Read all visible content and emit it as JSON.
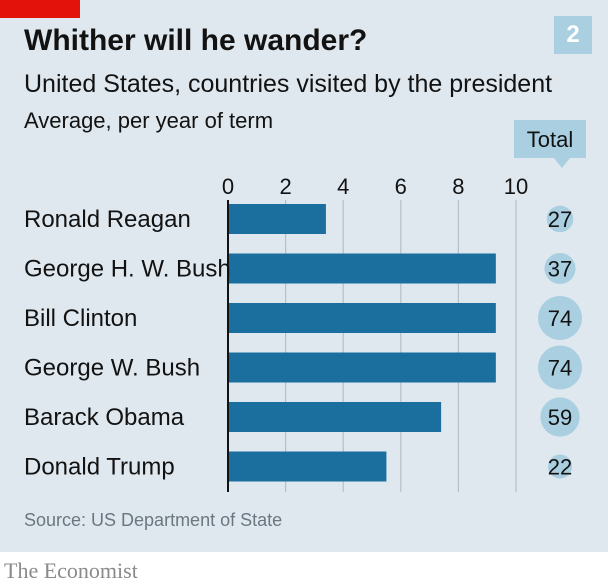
{
  "header": {
    "title": "Whither will he wander?",
    "subtitle": "United States, countries visited by the president",
    "subnote": "Average, per year of term",
    "chart_number": "2"
  },
  "total_header": "Total",
  "source": "Source: US Department of State",
  "brand": "The Economist",
  "colors": {
    "bar": "#1a6f9f",
    "background": "#dfe8ef",
    "bubble": "#a9cfe1",
    "accent_red": "#e3120b"
  },
  "chart_data": {
    "type": "bar",
    "orientation": "horizontal",
    "title": "Whither will he wander?",
    "subtitle": "United States, countries visited by the president",
    "categories": [
      "Ronald Reagan",
      "George H. W. Bush",
      "Bill Clinton",
      "George W. Bush",
      "Barack Obama",
      "Donald Trump"
    ],
    "values": [
      3.4,
      9.3,
      9.3,
      9.3,
      7.4,
      5.5
    ],
    "totals": [
      27,
      37,
      74,
      74,
      59,
      22
    ],
    "xlim": [
      0,
      10
    ],
    "xticks": [
      "0",
      "2",
      "4",
      "6",
      "8",
      "10"
    ],
    "xlabel": "Average, per year of term",
    "grid": true
  }
}
